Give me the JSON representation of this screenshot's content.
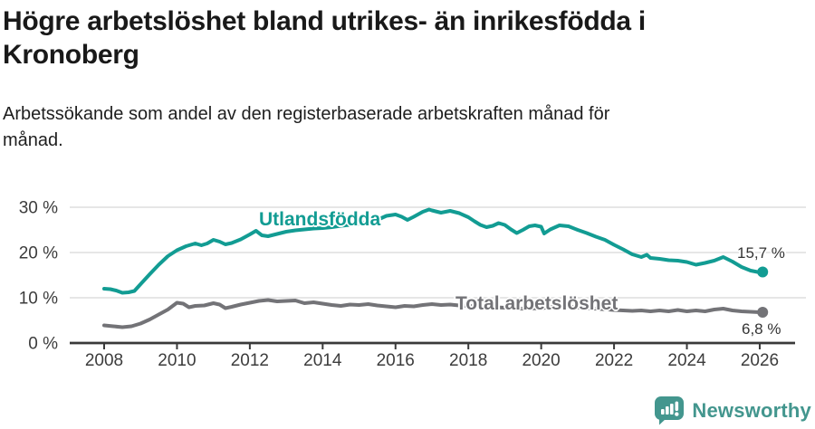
{
  "header": {
    "title_line1": "Högre arbetslöshet bland utrikes- än inrikesfödda i",
    "title_line2": "Kronoberg",
    "subtitle_line1": "Arbetssökande som andel av den registerbaserade arbetskraften månad för",
    "subtitle_line2": "månad."
  },
  "chart_data": {
    "type": "line",
    "title": "Högre arbetslöshet bland utrikes- än inrikesfödda i Kronoberg",
    "subtitle": "Arbetssökande som andel av den registerbaserade arbetskraften månad för månad.",
    "unit": "%",
    "legend": "inline-labels",
    "grid": true,
    "grid_color": "#D8D8D8",
    "axis_color": "#3A3A3A",
    "x_range": [
      2008,
      2026.17
    ],
    "ylim": [
      0,
      32
    ],
    "x_axis": {
      "ticks": [
        {
          "v": 2008,
          "label": "2008"
        },
        {
          "v": 2010,
          "label": "2010"
        },
        {
          "v": 2012,
          "label": "2012"
        },
        {
          "v": 2014,
          "label": "2014"
        },
        {
          "v": 2016,
          "label": "2016"
        },
        {
          "v": 2018,
          "label": "2018"
        },
        {
          "v": 2020,
          "label": "2020"
        },
        {
          "v": 2022,
          "label": "2022"
        },
        {
          "v": 2024,
          "label": "2024"
        },
        {
          "v": 2026,
          "label": "2026"
        }
      ]
    },
    "y_axis": {
      "ticks": [
        {
          "v": 0,
          "label": "0 %"
        },
        {
          "v": 10,
          "label": "10 %"
        },
        {
          "v": 20,
          "label": "20 %"
        },
        {
          "v": 30,
          "label": "30 %"
        }
      ]
    },
    "series": [
      {
        "name": "Utlandsfödda",
        "color": "#129C93",
        "end_value": 15.7,
        "end_label": "15,7 %",
        "points": [
          [
            2008.0,
            12.0
          ],
          [
            2008.17,
            11.9
          ],
          [
            2008.33,
            11.6
          ],
          [
            2008.5,
            11.1
          ],
          [
            2008.67,
            11.2
          ],
          [
            2008.83,
            11.5
          ],
          [
            2009.0,
            13.0
          ],
          [
            2009.25,
            15.2
          ],
          [
            2009.5,
            17.3
          ],
          [
            2009.75,
            19.2
          ],
          [
            2010.0,
            20.5
          ],
          [
            2010.25,
            21.4
          ],
          [
            2010.5,
            22.0
          ],
          [
            2010.67,
            21.6
          ],
          [
            2010.83,
            22.0
          ],
          [
            2011.0,
            22.8
          ],
          [
            2011.17,
            22.4
          ],
          [
            2011.33,
            21.8
          ],
          [
            2011.5,
            22.1
          ],
          [
            2011.75,
            22.9
          ],
          [
            2012.0,
            24.0
          ],
          [
            2012.17,
            24.8
          ],
          [
            2012.33,
            23.8
          ],
          [
            2012.5,
            23.6
          ],
          [
            2012.75,
            24.1
          ],
          [
            2013.0,
            24.6
          ],
          [
            2013.25,
            24.9
          ],
          [
            2013.5,
            25.1
          ],
          [
            2013.75,
            25.3
          ],
          [
            2014.0,
            25.4
          ],
          [
            2014.25,
            25.6
          ],
          [
            2014.5,
            25.9
          ],
          [
            2014.75,
            26.1
          ],
          [
            2015.0,
            26.4
          ],
          [
            2015.25,
            26.8
          ],
          [
            2015.5,
            27.2
          ],
          [
            2015.75,
            28.1
          ],
          [
            2016.0,
            28.4
          ],
          [
            2016.17,
            27.9
          ],
          [
            2016.33,
            27.2
          ],
          [
            2016.5,
            27.9
          ],
          [
            2016.75,
            29.0
          ],
          [
            2016.92,
            29.5
          ],
          [
            2017.0,
            29.3
          ],
          [
            2017.25,
            28.8
          ],
          [
            2017.5,
            29.2
          ],
          [
            2017.75,
            28.7
          ],
          [
            2018.0,
            27.8
          ],
          [
            2018.17,
            26.9
          ],
          [
            2018.33,
            26.1
          ],
          [
            2018.5,
            25.6
          ],
          [
            2018.67,
            25.9
          ],
          [
            2018.83,
            26.5
          ],
          [
            2019.0,
            26.1
          ],
          [
            2019.17,
            25.1
          ],
          [
            2019.33,
            24.3
          ],
          [
            2019.5,
            25.0
          ],
          [
            2019.67,
            25.8
          ],
          [
            2019.83,
            26.0
          ],
          [
            2020.0,
            25.7
          ],
          [
            2020.08,
            24.2
          ],
          [
            2020.25,
            25.1
          ],
          [
            2020.5,
            26.0
          ],
          [
            2020.75,
            25.8
          ],
          [
            2021.0,
            25.0
          ],
          [
            2021.25,
            24.3
          ],
          [
            2021.5,
            23.5
          ],
          [
            2021.75,
            22.8
          ],
          [
            2022.0,
            21.7
          ],
          [
            2022.25,
            20.7
          ],
          [
            2022.5,
            19.6
          ],
          [
            2022.75,
            19.0
          ],
          [
            2022.9,
            19.5
          ],
          [
            2023.0,
            18.8
          ],
          [
            2023.25,
            18.6
          ],
          [
            2023.5,
            18.3
          ],
          [
            2023.75,
            18.2
          ],
          [
            2024.0,
            17.9
          ],
          [
            2024.25,
            17.3
          ],
          [
            2024.5,
            17.7
          ],
          [
            2024.75,
            18.2
          ],
          [
            2025.0,
            19.0
          ],
          [
            2025.25,
            18.0
          ],
          [
            2025.5,
            16.8
          ],
          [
            2025.75,
            16.0
          ],
          [
            2026.0,
            15.6
          ],
          [
            2026.08,
            15.7
          ]
        ]
      },
      {
        "name": "Total arbetslöshet",
        "color": "#737377",
        "end_value": 6.8,
        "end_label": "6,8 %",
        "points": [
          [
            2008.0,
            3.9
          ],
          [
            2008.25,
            3.7
          ],
          [
            2008.5,
            3.5
          ],
          [
            2008.75,
            3.7
          ],
          [
            2009.0,
            4.3
          ],
          [
            2009.25,
            5.2
          ],
          [
            2009.5,
            6.3
          ],
          [
            2009.75,
            7.4
          ],
          [
            2010.0,
            8.9
          ],
          [
            2010.17,
            8.7
          ],
          [
            2010.33,
            7.9
          ],
          [
            2010.5,
            8.2
          ],
          [
            2010.75,
            8.3
          ],
          [
            2011.0,
            8.8
          ],
          [
            2011.17,
            8.5
          ],
          [
            2011.33,
            7.7
          ],
          [
            2011.5,
            8.0
          ],
          [
            2011.75,
            8.5
          ],
          [
            2012.0,
            8.9
          ],
          [
            2012.25,
            9.3
          ],
          [
            2012.5,
            9.5
          ],
          [
            2012.75,
            9.2
          ],
          [
            2013.0,
            9.3
          ],
          [
            2013.25,
            9.4
          ],
          [
            2013.5,
            8.8
          ],
          [
            2013.75,
            9.0
          ],
          [
            2014.0,
            8.7
          ],
          [
            2014.25,
            8.4
          ],
          [
            2014.5,
            8.2
          ],
          [
            2014.75,
            8.5
          ],
          [
            2015.0,
            8.4
          ],
          [
            2015.25,
            8.6
          ],
          [
            2015.5,
            8.3
          ],
          [
            2015.75,
            8.1
          ],
          [
            2016.0,
            7.9
          ],
          [
            2016.25,
            8.2
          ],
          [
            2016.5,
            8.1
          ],
          [
            2016.75,
            8.4
          ],
          [
            2017.0,
            8.6
          ],
          [
            2017.25,
            8.4
          ],
          [
            2017.5,
            8.5
          ],
          [
            2017.75,
            8.3
          ],
          [
            2018.0,
            8.2
          ],
          [
            2018.5,
            8.0
          ],
          [
            2019.0,
            7.8
          ],
          [
            2019.5,
            7.6
          ],
          [
            2020.0,
            7.7
          ],
          [
            2020.5,
            8.1
          ],
          [
            2021.0,
            7.9
          ],
          [
            2021.5,
            7.6
          ],
          [
            2022.0,
            7.3
          ],
          [
            2022.25,
            7.2
          ],
          [
            2022.5,
            7.1
          ],
          [
            2022.75,
            7.2
          ],
          [
            2023.0,
            7.0
          ],
          [
            2023.25,
            7.2
          ],
          [
            2023.5,
            7.0
          ],
          [
            2023.75,
            7.3
          ],
          [
            2024.0,
            7.0
          ],
          [
            2024.25,
            7.2
          ],
          [
            2024.5,
            7.0
          ],
          [
            2024.75,
            7.4
          ],
          [
            2025.0,
            7.6
          ],
          [
            2025.25,
            7.2
          ],
          [
            2025.5,
            7.0
          ],
          [
            2025.75,
            6.9
          ],
          [
            2026.0,
            6.8
          ],
          [
            2026.08,
            6.8
          ]
        ]
      }
    ]
  },
  "footer": {
    "brand": "Newsworthy",
    "brand_color": "#43968E",
    "logo_icon": "speech-bubble-bar-chart-icon"
  }
}
